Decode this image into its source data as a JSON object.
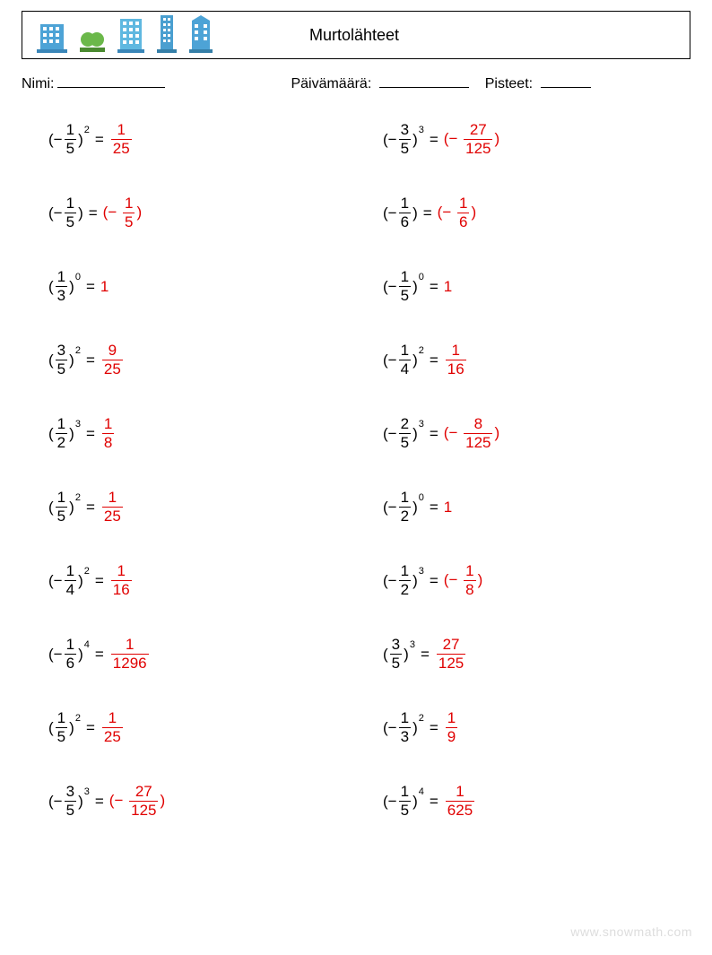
{
  "header": {
    "title": "Murtolähteet"
  },
  "info": {
    "name_label": "Nimi:",
    "date_label": "Päivämäärä:",
    "score_label": "Pisteet:"
  },
  "colors": {
    "text": "#000000",
    "answer": "#e00000",
    "icon_building": "#4da3d6",
    "icon_building2": "#5fb8e0",
    "icon_building3": "#4a9fd0",
    "icon_tree": "#6bb84a",
    "watermark": "#dddddd"
  },
  "watermark": "www.snowmath.com",
  "problems": {
    "left": [
      {
        "sign": "−",
        "num": "1",
        "den": "5",
        "exp": "2",
        "ans_type": "frac",
        "ans_sign": "",
        "ans_num": "1",
        "ans_den": "25"
      },
      {
        "sign": "−",
        "num": "1",
        "den": "5",
        "exp": "",
        "ans_type": "paren_frac",
        "ans_sign": "−",
        "ans_num": "1",
        "ans_den": "5"
      },
      {
        "sign": "",
        "num": "1",
        "den": "3",
        "exp": "0",
        "ans_type": "int",
        "ans_val": "1"
      },
      {
        "sign": "",
        "num": "3",
        "den": "5",
        "exp": "2",
        "ans_type": "frac",
        "ans_sign": "",
        "ans_num": "9",
        "ans_den": "25"
      },
      {
        "sign": "",
        "num": "1",
        "den": "2",
        "exp": "3",
        "ans_type": "frac",
        "ans_sign": "",
        "ans_num": "1",
        "ans_den": "8"
      },
      {
        "sign": "",
        "num": "1",
        "den": "5",
        "exp": "2",
        "ans_type": "frac",
        "ans_sign": "",
        "ans_num": "1",
        "ans_den": "25"
      },
      {
        "sign": "−",
        "num": "1",
        "den": "4",
        "exp": "2",
        "ans_type": "frac",
        "ans_sign": "",
        "ans_num": "1",
        "ans_den": "16"
      },
      {
        "sign": "−",
        "num": "1",
        "den": "6",
        "exp": "4",
        "ans_type": "frac",
        "ans_sign": "",
        "ans_num": "1",
        "ans_den": "1296"
      },
      {
        "sign": "",
        "num": "1",
        "den": "5",
        "exp": "2",
        "ans_type": "frac",
        "ans_sign": "",
        "ans_num": "1",
        "ans_den": "25"
      },
      {
        "sign": "−",
        "num": "3",
        "den": "5",
        "exp": "3",
        "ans_type": "paren_frac",
        "ans_sign": "−",
        "ans_num": "27",
        "ans_den": "125"
      }
    ],
    "right": [
      {
        "sign": "−",
        "num": "3",
        "den": "5",
        "exp": "3",
        "ans_type": "paren_frac",
        "ans_sign": "−",
        "ans_num": "27",
        "ans_den": "125"
      },
      {
        "sign": "−",
        "num": "1",
        "den": "6",
        "exp": "",
        "ans_type": "paren_frac",
        "ans_sign": "−",
        "ans_num": "1",
        "ans_den": "6"
      },
      {
        "sign": "−",
        "num": "1",
        "den": "5",
        "exp": "0",
        "ans_type": "int",
        "ans_val": "1"
      },
      {
        "sign": "−",
        "num": "1",
        "den": "4",
        "exp": "2",
        "ans_type": "frac",
        "ans_sign": "",
        "ans_num": "1",
        "ans_den": "16"
      },
      {
        "sign": "−",
        "num": "2",
        "den": "5",
        "exp": "3",
        "ans_type": "paren_frac",
        "ans_sign": "−",
        "ans_num": "8",
        "ans_den": "125"
      },
      {
        "sign": "−",
        "num": "1",
        "den": "2",
        "exp": "0",
        "ans_type": "int",
        "ans_val": "1"
      },
      {
        "sign": "−",
        "num": "1",
        "den": "2",
        "exp": "3",
        "ans_type": "paren_frac",
        "ans_sign": "−",
        "ans_num": "1",
        "ans_den": "8"
      },
      {
        "sign": "",
        "num": "3",
        "den": "5",
        "exp": "3",
        "ans_type": "frac",
        "ans_sign": "",
        "ans_num": "27",
        "ans_den": "125"
      },
      {
        "sign": "−",
        "num": "1",
        "den": "3",
        "exp": "2",
        "ans_type": "frac",
        "ans_sign": "",
        "ans_num": "1",
        "ans_den": "9"
      },
      {
        "sign": "−",
        "num": "1",
        "den": "5",
        "exp": "4",
        "ans_type": "frac",
        "ans_sign": "",
        "ans_num": "1",
        "ans_den": "625"
      }
    ]
  }
}
